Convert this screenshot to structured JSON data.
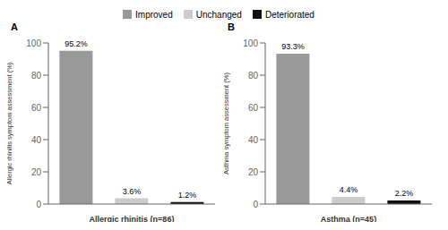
{
  "chart_data": [
    {
      "type": "bar",
      "title": "A",
      "categories": [
        "Improved",
        "Unchanged",
        "Deteriorated"
      ],
      "values": [
        95.2,
        3.6,
        1.2
      ],
      "value_labels": [
        "95.2%",
        "3.6%",
        "1.2%"
      ],
      "data_labels": true,
      "colors": [
        "#999999",
        "#cccccc",
        "#111111"
      ],
      "xlabel": "Allergic rhinitis (n=86)",
      "ylabel": "Allergic rhinitis symptom assessment (%)",
      "ylim": [
        0,
        100
      ],
      "yticks": [
        0,
        20,
        40,
        60,
        80,
        100
      ],
      "tick_labels": "y",
      "legend": "top"
    },
    {
      "type": "bar",
      "title": "B",
      "categories": [
        "Improved",
        "Unchanged",
        "Deteriorated"
      ],
      "values": [
        93.3,
        4.4,
        2.2
      ],
      "value_labels": [
        "93.3%",
        "4.4%",
        "2.2%"
      ],
      "data_labels": true,
      "colors": [
        "#999999",
        "#cccccc",
        "#111111"
      ],
      "xlabel": "Asthma (n=45)",
      "ylabel": "Asthma symptom assessment (%)",
      "ylim": [
        0,
        100
      ],
      "yticks": [
        0,
        20,
        40,
        60,
        80,
        100
      ],
      "tick_labels": "y",
      "legend": "top"
    }
  ]
}
